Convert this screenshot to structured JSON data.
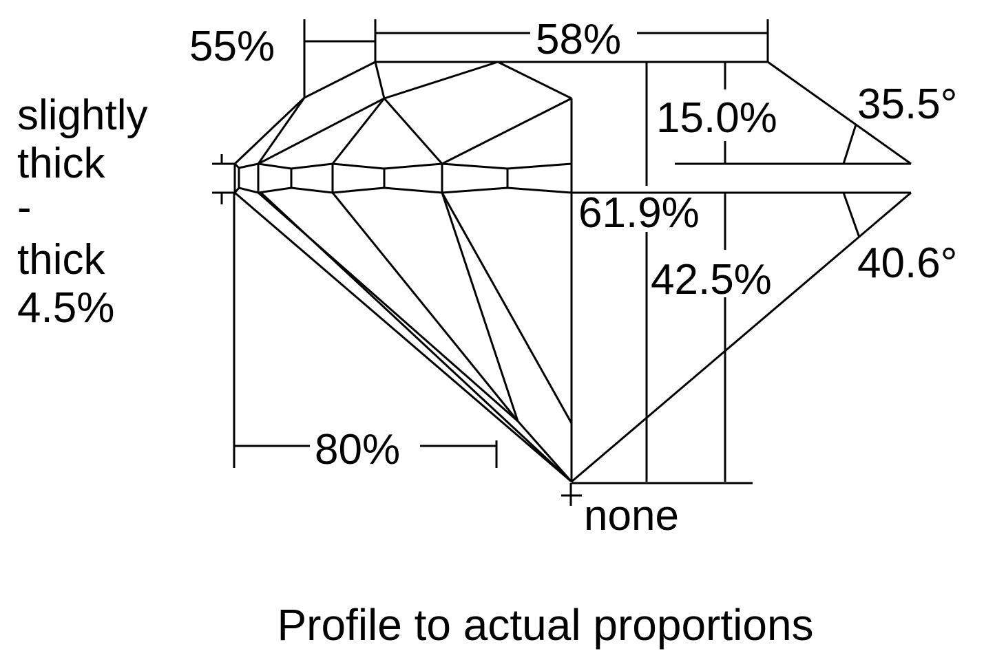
{
  "diagram": {
    "title": "Profile to actual proportions",
    "girdle": {
      "lines": [
        "slightly",
        "thick",
        "-",
        "thick",
        "4.5%"
      ]
    },
    "crown_height_label": "55%",
    "table_label": "58%",
    "crown_depth_label": "15.0%",
    "crown_angle_label": "35.5°",
    "total_depth_label": "61.9%",
    "pavilion_depth_label": "42.5%",
    "pavilion_angle_label": "40.6°",
    "lower_half_label": "80%",
    "culet_label": "none",
    "line_color": "#000000",
    "background_color": "#ffffff"
  }
}
